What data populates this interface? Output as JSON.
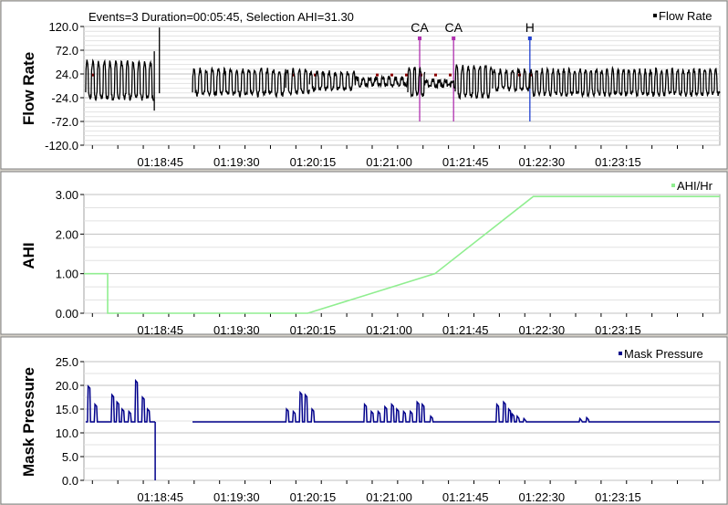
{
  "colors": {
    "flow": "#000000",
    "ahi": "#90ee90",
    "mask": "#00008b",
    "grid": "#c0c0c0",
    "event_ca": "#b030b0",
    "event_h": "#1f3fd0",
    "dots": "#8b0000"
  },
  "chart_data": [
    {
      "type": "line",
      "title": "Events=3 Duration=00:05:45, Selection AHI=31.30",
      "ylabel": "Flow Rate",
      "ylim": [
        -120,
        120
      ],
      "yticks": [
        "120.0",
        "72.0",
        "24.0",
        "-24.0",
        "-72.0",
        "-120.0"
      ],
      "xticks": [
        "01:18:45",
        "01:19:30",
        "01:20:15",
        "01:21:00",
        "01:21:45",
        "01:22:30",
        "01:23:15"
      ],
      "legend": "top-right",
      "series": [
        {
          "name": "Flow Rate"
        }
      ],
      "events": [
        {
          "label": "CA",
          "time": "01:21:18"
        },
        {
          "label": "CA",
          "time": "01:21:38"
        },
        {
          "label": "H",
          "time": "01:22:23"
        }
      ]
    },
    {
      "type": "line",
      "ylabel": "AHI",
      "ylim": [
        0,
        3
      ],
      "yticks": [
        "3.00",
        "2.00",
        "1.00",
        "0.00"
      ],
      "xticks": [
        "01:18:45",
        "01:19:30",
        "01:20:15",
        "01:21:00",
        "01:21:45",
        "01:22:30",
        "01:23:15"
      ],
      "legend": "top-right",
      "series": [
        {
          "name": "AHI/Hr",
          "x": [
            "01:18:00",
            "01:18:14",
            "01:18:14",
            "01:20:12",
            "01:21:27",
            "01:22:25",
            "01:24:15"
          ],
          "y": [
            1.0,
            1.0,
            0.0,
            0.0,
            1.0,
            2.95,
            2.95
          ]
        }
      ]
    },
    {
      "type": "line",
      "ylabel": "Mask Pressure",
      "ylim": [
        0,
        25
      ],
      "yticks": [
        "25.0",
        "20.0",
        "15.0",
        "10.0",
        "5.0",
        "0.0"
      ],
      "xticks": [
        "01:18:45",
        "01:19:30",
        "01:20:15",
        "01:21:00",
        "01:21:45",
        "01:22:30",
        "01:23:15"
      ],
      "legend": "top-right",
      "series": [
        {
          "name": "Mask Pressure"
        }
      ]
    }
  ]
}
